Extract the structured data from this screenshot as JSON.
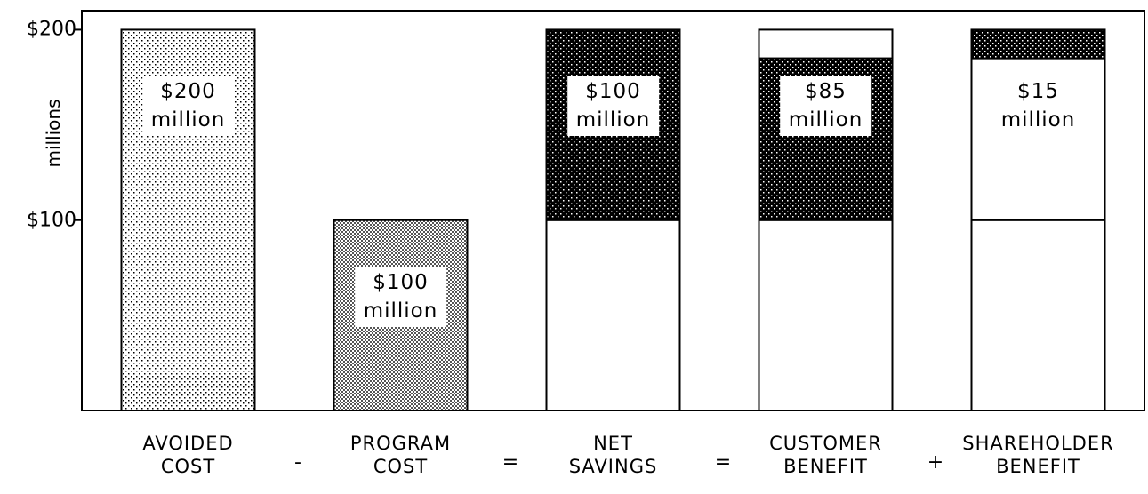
{
  "chart_data": {
    "type": "bar",
    "stacked": true,
    "y_label": "millions",
    "categories": [
      "AVOIDED COST",
      "PROGRAM COST",
      "NET SAVINGS",
      "CUSTOMER BENEFIT",
      "SHAREHOLDER BENEFIT"
    ],
    "operators": [
      "-",
      "=",
      "=",
      "+"
    ],
    "series": [
      {
        "values": [
          200,
          100,
          100,
          100,
          100
        ],
        "patterns": [
          "light-dots",
          "gray-dots",
          "white",
          "white",
          "white"
        ],
        "value_labels": [
          "$200 million",
          "$100 million",
          null,
          null,
          null
        ]
      },
      {
        "values": [
          null,
          null,
          100,
          85,
          85
        ],
        "patterns": [
          null,
          null,
          "dark-dots",
          "dark-dots",
          "white"
        ],
        "value_labels": [
          null,
          null,
          "$100 million",
          "$85 million",
          null
        ]
      },
      {
        "values": [
          null,
          null,
          null,
          15,
          15
        ],
        "patterns": [
          null,
          null,
          null,
          "white",
          "dark-dots"
        ],
        "value_labels": [
          null,
          null,
          null,
          null,
          "$15 million"
        ]
      }
    ],
    "ylim": [
      0,
      210
    ],
    "yticks": [
      {
        "value": 100,
        "label": "$100"
      },
      {
        "value": 200,
        "label": "$200"
      }
    ]
  }
}
